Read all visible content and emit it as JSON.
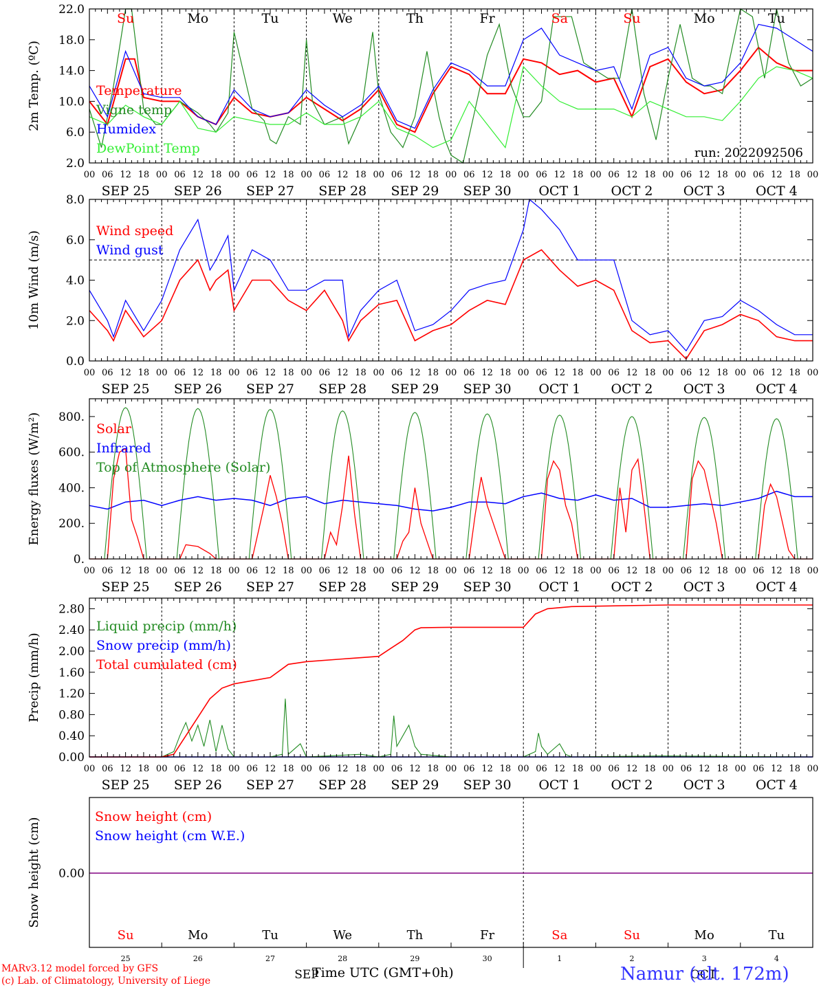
{
  "days": [
    "SEP 25",
    "SEP 26",
    "SEP 27",
    "SEP 28",
    "SEP 29",
    "SEP 30",
    "OCT  1",
    "OCT  2",
    "OCT  3",
    "OCT  4"
  ],
  "weekdays": [
    "Su",
    "Mo",
    "Tu",
    "We",
    "Th",
    "Fr",
    "Sa",
    "Su",
    "Mo",
    "Tu"
  ],
  "weekday_colors": [
    "#ff0000",
    "#000000",
    "#000000",
    "#000000",
    "#000000",
    "#000000",
    "#ff0000",
    "#ff0000",
    "#000000",
    "#000000"
  ],
  "hour_ticks": [
    "00",
    "06",
    "12",
    "18"
  ],
  "snow_panel_day_numbers": [
    "25",
    "26",
    "27",
    "28",
    "29",
    "30",
    "1",
    "2",
    "3",
    "4"
  ],
  "snow_panel_month_labels": [
    "SEP",
    "OCT"
  ],
  "colors": {
    "red": "#ff0000",
    "green": "#228b22",
    "blue": "#0000ff",
    "lightgreen": "#33ee33",
    "purple": "#800080"
  },
  "footer": {
    "left_line1": "MARv3.12 model forced by GFS",
    "left_line2": "(c) Lab. of Climatology, University of Liege",
    "axis_title": "Time UTC (GMT+0h)",
    "station": "Namur (alt. 172m)"
  },
  "chart_data": [
    {
      "type": "line",
      "ylabel": "2m Temp. (ºC)",
      "ylim": [
        2,
        22
      ],
      "yticks": [
        "2.0",
        "6.0",
        "10.0",
        "14.0",
        "18.0",
        "22.0"
      ],
      "annotation": "run: 2022092506",
      "x_unit": "hours since SEP 25 00 UTC",
      "series": [
        {
          "name": "Temperature",
          "color": "red",
          "x": [
            0,
            6,
            12,
            15,
            18,
            24,
            30,
            36,
            42,
            48,
            54,
            60,
            66,
            72,
            78,
            84,
            90,
            96,
            102,
            108,
            114,
            120,
            126,
            132,
            138,
            144,
            150,
            156,
            162,
            168,
            174,
            180,
            186,
            192,
            198,
            204,
            210,
            216,
            222,
            228,
            234,
            240
          ],
          "y": [
            10,
            7,
            15.5,
            15.5,
            10.5,
            10,
            10,
            8,
            7,
            10.5,
            8.5,
            8,
            8.5,
            10.5,
            9,
            7.5,
            9,
            11.5,
            7,
            6,
            11,
            14.5,
            13.5,
            11,
            11,
            15.5,
            15,
            13.5,
            14,
            12.5,
            13,
            8,
            14.5,
            15.5,
            12.5,
            11,
            11.5,
            14,
            17,
            15,
            14,
            14
          ]
        },
        {
          "name": "Vigne temp",
          "color": "green",
          "x": [
            0,
            4,
            8,
            12,
            14,
            18,
            22,
            24,
            30,
            36,
            40,
            42,
            46,
            48,
            54,
            58,
            60,
            62,
            66,
            70,
            72,
            74,
            78,
            84,
            86,
            90,
            94,
            96,
            100,
            104,
            108,
            112,
            114,
            116,
            118,
            120,
            124,
            128,
            132,
            136,
            140,
            144,
            146,
            150,
            154,
            160,
            164,
            168,
            172,
            176,
            180,
            184,
            188,
            192,
            196,
            200,
            204,
            206,
            210,
            216,
            220,
            224,
            228,
            232,
            236,
            240
          ],
          "y": [
            9,
            4,
            12,
            22,
            22,
            9,
            7,
            7,
            10,
            8.5,
            7,
            6,
            8.5,
            19,
            9,
            7.5,
            5,
            4.5,
            8,
            7,
            18,
            10,
            7,
            8,
            4.5,
            8,
            19,
            11,
            6,
            4,
            8,
            16.5,
            12,
            8,
            5,
            3,
            2,
            9,
            16,
            20,
            12,
            8,
            8,
            10,
            21,
            21,
            15,
            14,
            13,
            13,
            22,
            11,
            5,
            13,
            20,
            13,
            12,
            12,
            11,
            22,
            21,
            13,
            22,
            15,
            12,
            13
          ]
        },
        {
          "name": "Humidex",
          "color": "blue",
          "x": [
            0,
            6,
            12,
            18,
            24,
            30,
            36,
            42,
            48,
            54,
            60,
            66,
            72,
            78,
            84,
            90,
            96,
            102,
            108,
            114,
            120,
            126,
            132,
            138,
            144,
            150,
            156,
            162,
            168,
            174,
            180,
            186,
            192,
            198,
            204,
            210,
            216,
            222,
            228,
            234,
            240
          ],
          "y": [
            12,
            8,
            16.5,
            11,
            10.5,
            10.5,
            8,
            7,
            11.5,
            9,
            8,
            8.5,
            11.5,
            9.5,
            8,
            9.5,
            12,
            7.5,
            6.5,
            11.5,
            15,
            14,
            12,
            12,
            18,
            19.5,
            16,
            15,
            14,
            14.5,
            9,
            16,
            17,
            13,
            12,
            12.5,
            15,
            20,
            19.5,
            18,
            16.5
          ]
        },
        {
          "name": "DewPoint Temp",
          "color": "lightgreen",
          "x": [
            0,
            6,
            12,
            18,
            24,
            30,
            36,
            42,
            48,
            54,
            60,
            66,
            72,
            78,
            84,
            90,
            96,
            102,
            108,
            114,
            120,
            126,
            132,
            138,
            144,
            150,
            156,
            162,
            168,
            174,
            180,
            186,
            192,
            198,
            204,
            210,
            216,
            222,
            228,
            234,
            240
          ],
          "y": [
            8,
            7,
            9.5,
            8,
            7,
            10,
            6.5,
            6,
            8,
            7.5,
            7,
            7,
            8.5,
            7,
            7,
            8,
            10,
            6.5,
            5.5,
            4,
            5,
            10,
            7,
            4,
            14.5,
            12,
            10,
            9,
            9,
            9,
            8,
            10,
            9,
            8,
            8,
            7.5,
            10,
            13,
            14.5,
            14,
            13
          ]
        }
      ]
    },
    {
      "type": "line",
      "ylabel": "10m Wind (m/s)",
      "ylim": [
        0,
        8
      ],
      "yticks": [
        "0.0",
        "2.0",
        "4.0",
        "6.0",
        "8.0"
      ],
      "reference_line": 5,
      "series": [
        {
          "name": "Wind speed",
          "color": "red",
          "x": [
            0,
            6,
            8,
            12,
            18,
            24,
            30,
            36,
            40,
            42,
            46,
            48,
            54,
            60,
            66,
            72,
            78,
            84,
            86,
            90,
            96,
            102,
            108,
            114,
            120,
            126,
            132,
            138,
            144,
            150,
            156,
            162,
            168,
            174,
            180,
            186,
            192,
            198,
            204,
            210,
            216,
            222,
            228,
            234,
            240
          ],
          "y": [
            2.5,
            1.5,
            1,
            2.5,
            1.2,
            2,
            4,
            5,
            3.5,
            4,
            4.5,
            2.5,
            4,
            4,
            3,
            2.5,
            3.5,
            2,
            1,
            2,
            2.8,
            3,
            1,
            1.5,
            1.8,
            2.5,
            3,
            2.8,
            5,
            5.5,
            4.5,
            3.7,
            4,
            3.5,
            1.5,
            0.9,
            1,
            0.1,
            1.5,
            1.8,
            2.3,
            2,
            1.2,
            1,
            1
          ]
        },
        {
          "name": "Wind gust",
          "color": "blue",
          "x": [
            0,
            6,
            8,
            12,
            18,
            24,
            30,
            36,
            40,
            42,
            46,
            48,
            54,
            60,
            66,
            72,
            78,
            84,
            86,
            90,
            96,
            102,
            108,
            114,
            120,
            126,
            132,
            138,
            144,
            146,
            150,
            156,
            162,
            168,
            174,
            180,
            186,
            192,
            198,
            204,
            210,
            216,
            222,
            228,
            234,
            240
          ],
          "y": [
            3.5,
            2,
            1.2,
            3,
            1.5,
            3,
            5.5,
            7,
            4.5,
            5,
            6.2,
            3.5,
            5.5,
            5,
            3.5,
            3.5,
            4,
            4,
            1.2,
            2.5,
            3.5,
            4,
            1.5,
            1.8,
            2.5,
            3.5,
            3.8,
            4,
            6.5,
            8,
            7.5,
            6.5,
            5,
            5,
            5,
            2,
            1.3,
            1.5,
            0.5,
            2,
            2.2,
            3,
            2.5,
            1.8,
            1.3,
            1.3
          ]
        }
      ]
    },
    {
      "type": "line",
      "ylabel": "Energy fluxes (W/m²)",
      "ylim": [
        0,
        900
      ],
      "yticks": [
        "0.",
        "200.",
        "400.",
        "600.",
        "800."
      ],
      "series": [
        {
          "name": "Solar",
          "color": "red",
          "x": [
            0,
            6,
            8,
            10,
            12,
            14,
            16,
            18,
            24,
            30,
            32,
            36,
            40,
            42,
            48,
            54,
            56,
            58,
            60,
            62,
            64,
            66,
            72,
            78,
            80,
            82,
            84,
            86,
            88,
            90,
            96,
            102,
            104,
            106,
            108,
            110,
            112,
            114,
            120,
            126,
            128,
            130,
            132,
            134,
            136,
            138,
            144,
            150,
            152,
            154,
            156,
            158,
            160,
            162,
            168,
            174,
            176,
            178,
            180,
            182,
            184,
            186,
            192,
            198,
            200,
            202,
            204,
            206,
            208,
            210,
            216,
            222,
            224,
            226,
            228,
            230,
            232,
            234,
            240
          ],
          "y": [
            0,
            0,
            450,
            600,
            620,
            220,
            120,
            0,
            0,
            0,
            80,
            70,
            30,
            0,
            0,
            0,
            150,
            300,
            470,
            350,
            200,
            0,
            0,
            0,
            150,
            80,
            300,
            580,
            250,
            0,
            0,
            0,
            100,
            150,
            400,
            200,
            100,
            0,
            0,
            0,
            250,
            460,
            300,
            200,
            100,
            0,
            0,
            0,
            450,
            550,
            500,
            300,
            200,
            0,
            0,
            0,
            400,
            150,
            500,
            560,
            300,
            0,
            0,
            0,
            450,
            550,
            500,
            350,
            200,
            0,
            0,
            0,
            300,
            420,
            350,
            200,
            50,
            0,
            0
          ]
        },
        {
          "name": "Infrared",
          "color": "blue",
          "x": [
            0,
            6,
            12,
            18,
            24,
            30,
            36,
            42,
            48,
            54,
            60,
            66,
            72,
            78,
            84,
            90,
            96,
            102,
            108,
            114,
            120,
            126,
            132,
            138,
            144,
            150,
            156,
            162,
            168,
            174,
            180,
            186,
            192,
            198,
            204,
            210,
            216,
            222,
            228,
            234,
            240
          ],
          "y": [
            300,
            280,
            320,
            330,
            300,
            330,
            350,
            330,
            340,
            330,
            300,
            340,
            350,
            310,
            330,
            320,
            310,
            300,
            280,
            270,
            290,
            320,
            320,
            310,
            350,
            370,
            340,
            330,
            360,
            330,
            340,
            290,
            290,
            300,
            310,
            300,
            320,
            340,
            380,
            350,
            350
          ]
        },
        {
          "name": "Top of Atmosphere (Solar)",
          "color": "green",
          "values_note": "daily arcs",
          "peaks": [
            850,
            845,
            840,
            832,
            823,
            815,
            808,
            800,
            795,
            788
          ]
        }
      ]
    },
    {
      "type": "line",
      "ylabel": "Precip (mm/h)",
      "ylim": [
        0,
        3.0
      ],
      "yticks": [
        "0.00",
        "0.40",
        "0.80",
        "1.20",
        "1.60",
        "2.00",
        "2.40",
        "2.80"
      ],
      "series": [
        {
          "name": "Liquid precip (mm/h)",
          "color": "green",
          "x": [
            0,
            24,
            28,
            30,
            32,
            34,
            36,
            38,
            40,
            42,
            44,
            46,
            48,
            60,
            64,
            65,
            66,
            70,
            72,
            90,
            96,
            100,
            101,
            102,
            104,
            106,
            108,
            110,
            120,
            144,
            148,
            149,
            150,
            152,
            154,
            156,
            158,
            160,
            190,
            240
          ],
          "y": [
            0,
            0,
            0.1,
            0.4,
            0.65,
            0.3,
            0.6,
            0.2,
            0.7,
            0.1,
            0.6,
            0.15,
            0,
            0,
            0.05,
            1.1,
            0.05,
            0.25,
            0,
            0.05,
            0,
            0.05,
            0.78,
            0.2,
            0.4,
            0.6,
            0.2,
            0.05,
            0,
            0,
            0.1,
            0.45,
            0.2,
            0.05,
            0.15,
            0.25,
            0.05,
            0,
            0.02,
            0
          ]
        },
        {
          "name": "Snow precip (mm/h)",
          "color": "blue",
          "x": [
            0,
            240
          ],
          "y": [
            0,
            0
          ]
        },
        {
          "name": "Total cumulated (cm)",
          "color": "red",
          "x": [
            0,
            24,
            28,
            32,
            36,
            40,
            44,
            48,
            60,
            66,
            72,
            84,
            96,
            100,
            104,
            108,
            110,
            120,
            144,
            148,
            152,
            160,
            192,
            240
          ],
          "y": [
            0,
            0,
            0.05,
            0.4,
            0.75,
            1.1,
            1.3,
            1.38,
            1.5,
            1.75,
            1.8,
            1.85,
            1.9,
            2.05,
            2.2,
            2.4,
            2.44,
            2.45,
            2.45,
            2.7,
            2.8,
            2.84,
            2.87,
            2.87
          ]
        }
      ]
    },
    {
      "type": "line",
      "ylabel": "Snow height (cm)",
      "yticks": [
        "0.00"
      ],
      "series": [
        {
          "name": "Snow height (cm)",
          "color": "red",
          "x": [
            0,
            240
          ],
          "y": [
            0,
            0
          ]
        },
        {
          "name": "Snow height (cm W.E.)",
          "color": "blue",
          "x": [
            0,
            240
          ],
          "y": [
            0,
            0
          ]
        }
      ]
    }
  ]
}
